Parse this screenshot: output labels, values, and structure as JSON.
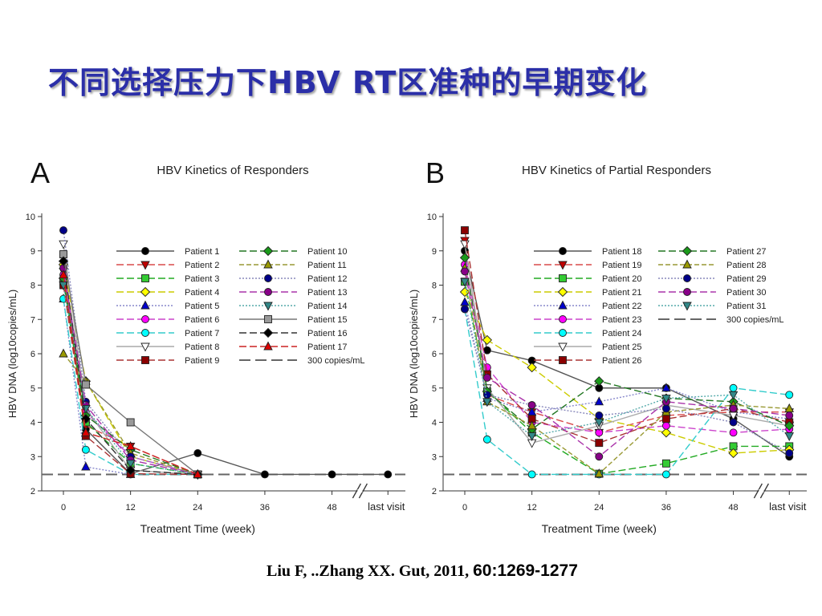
{
  "slide_title": "不同选择压力下HBV RT区准种的早期变化",
  "citation": {
    "authors": "Liu F, ..Zhang XX. Gut, 2011,",
    "pages": "60:1269-1277"
  },
  "chart_data": [
    {
      "type": "line",
      "panel": "A",
      "title": "HBV Kinetics of Responders",
      "xlabel": "Treatment Time (week)",
      "ylabel": "HBV DNA (log10copies/mL)",
      "ylim": [
        2,
        10
      ],
      "yticks": [
        2,
        3,
        4,
        5,
        6,
        7,
        8,
        9,
        10
      ],
      "xtick_labels": [
        "0",
        "12",
        "24",
        "36",
        "48",
        "last visit"
      ],
      "x_positions": [
        0,
        12,
        24,
        36,
        48,
        58
      ],
      "axis_break": "between 48 and last visit",
      "reference_line": {
        "name": "300 copies/mL",
        "y": 2.48
      },
      "legend_position": "top-right",
      "series": [
        {
          "name": "Patient 1",
          "color": "#555555",
          "marker": "circle",
          "fill": "#000000",
          "dash": "none",
          "x": [
            0,
            4,
            12,
            24,
            36,
            48,
            58
          ],
          "y": [
            8.2,
            3.8,
            2.5,
            3.1,
            2.48,
            2.48,
            2.48
          ]
        },
        {
          "name": "Patient 2",
          "color": "#d94a4a",
          "marker": "tri-down",
          "fill": "#c00000",
          "dash": "long",
          "x": [
            0,
            4,
            12,
            24
          ],
          "y": [
            8.4,
            3.9,
            3.3,
            2.48
          ]
        },
        {
          "name": "Patient 3",
          "color": "#22aa22",
          "marker": "square",
          "fill": "#33cc33",
          "dash": "long",
          "x": [
            0,
            4,
            12,
            24
          ],
          "y": [
            8.1,
            4.0,
            2.8,
            2.48
          ]
        },
        {
          "name": "Patient 4",
          "color": "#cccc00",
          "marker": "diamond",
          "fill": "#ffff00",
          "dash": "long",
          "x": [
            0,
            4,
            12,
            24
          ],
          "y": [
            8.6,
            5.2,
            3.0,
            2.48
          ]
        },
        {
          "name": "Patient 5",
          "color": "#8888cc",
          "marker": "tri-up",
          "fill": "#0000cc",
          "dash": "dot",
          "x": [
            0,
            4,
            12
          ],
          "y": [
            7.6,
            2.7,
            2.48
          ]
        },
        {
          "name": "Patient 6",
          "color": "#cc44cc",
          "marker": "circle",
          "fill": "#ff00ff",
          "dash": "long",
          "x": [
            0,
            4,
            12,
            24
          ],
          "y": [
            8.3,
            4.3,
            3.0,
            2.48
          ]
        },
        {
          "name": "Patient 7",
          "color": "#33cccc",
          "marker": "circle",
          "fill": "#00ffff",
          "dash": "long",
          "x": [
            0,
            4,
            12,
            24
          ],
          "y": [
            7.6,
            3.2,
            2.48,
            2.48
          ]
        },
        {
          "name": "Patient 8",
          "color": "#aaaaaa",
          "marker": "tri-down",
          "fill": "#ffffff",
          "dash": "none",
          "x": [
            0,
            4,
            12,
            24
          ],
          "y": [
            9.2,
            4.4,
            2.6,
            2.48
          ]
        },
        {
          "name": "Patient 9",
          "color": "#aa3333",
          "marker": "square",
          "fill": "#8b0000",
          "dash": "long",
          "x": [
            0,
            4,
            12,
            24
          ],
          "y": [
            8.0,
            3.6,
            2.5,
            2.48
          ]
        },
        {
          "name": "Patient 10",
          "color": "#227722",
          "marker": "diamond",
          "fill": "#1a9a1a",
          "dash": "long",
          "x": [
            0,
            4,
            12,
            24
          ],
          "y": [
            8.2,
            4.2,
            3.2,
            2.48
          ]
        },
        {
          "name": "Patient 11",
          "color": "#999933",
          "marker": "tri-up",
          "fill": "#999900",
          "dash": "dash",
          "x": [
            0,
            4,
            12,
            24
          ],
          "y": [
            6.0,
            5.2,
            3.1,
            2.48
          ]
        },
        {
          "name": "Patient 12",
          "color": "#8888bb",
          "marker": "circle",
          "fill": "#000088",
          "dash": "dot",
          "x": [
            0,
            4,
            12,
            24
          ],
          "y": [
            9.6,
            4.6,
            3.0,
            2.48
          ]
        },
        {
          "name": "Patient 13",
          "color": "#aa33aa",
          "marker": "circle",
          "fill": "#880088",
          "dash": "long",
          "x": [
            0,
            4,
            12,
            24
          ],
          "y": [
            8.5,
            4.5,
            2.9,
            2.48
          ]
        },
        {
          "name": "Patient 14",
          "color": "#55aaaa",
          "marker": "tri-down",
          "fill": "#338888",
          "dash": "dot",
          "x": [
            0,
            4,
            12,
            24
          ],
          "y": [
            8.0,
            4.4,
            2.8,
            2.48
          ]
        },
        {
          "name": "Patient 15",
          "color": "#777777",
          "marker": "square",
          "fill": "#999999",
          "dash": "none",
          "x": [
            0,
            4,
            12,
            24
          ],
          "y": [
            8.9,
            5.1,
            4.0,
            2.48
          ]
        },
        {
          "name": "Patient 16",
          "color": "#333333",
          "marker": "diamond",
          "fill": "#000000",
          "dash": "long",
          "x": [
            0,
            4,
            12,
            24
          ],
          "y": [
            8.7,
            4.1,
            2.6,
            2.48
          ]
        },
        {
          "name": "Patient 17",
          "color": "#cc2222",
          "marker": "tri-up",
          "fill": "#dd0000",
          "dash": "long",
          "x": [
            0,
            4,
            12,
            24
          ],
          "y": [
            8.3,
            3.7,
            3.3,
            2.48
          ]
        }
      ],
      "legend_ref_label": "300 copies/mL"
    },
    {
      "type": "line",
      "panel": "B",
      "title": "HBV Kinetics of Partial Responders",
      "xlabel": "Treatment Time (week)",
      "ylabel": "HBV DNA (log10copies/mL)",
      "ylim": [
        2,
        10
      ],
      "yticks": [
        2,
        3,
        4,
        5,
        6,
        7,
        8,
        9,
        10
      ],
      "xtick_labels": [
        "0",
        "12",
        "24",
        "36",
        "48",
        "last visit"
      ],
      "x_positions": [
        0,
        12,
        24,
        36,
        48,
        58
      ],
      "axis_break": "between 48 and last visit",
      "reference_line": {
        "name": "300 copies/mL",
        "y": 2.48
      },
      "legend_position": "top-right",
      "series": [
        {
          "name": "Patient 18",
          "color": "#555555",
          "marker": "circle",
          "fill": "#000000",
          "dash": "none",
          "x": [
            0,
            4,
            12,
            24,
            36,
            48,
            58
          ],
          "y": [
            9.0,
            6.1,
            5.8,
            5.0,
            5.0,
            4.1,
            3.0
          ]
        },
        {
          "name": "Patient 19",
          "color": "#d94a4a",
          "marker": "tri-down",
          "fill": "#c00000",
          "dash": "long",
          "x": [
            0,
            4,
            12,
            24,
            36,
            48,
            58
          ],
          "y": [
            9.3,
            4.8,
            4.3,
            3.7,
            4.2,
            4.3,
            4.3
          ]
        },
        {
          "name": "Patient 20",
          "color": "#22aa22",
          "marker": "square",
          "fill": "#33cc33",
          "dash": "long",
          "x": [
            0,
            4,
            12,
            24,
            36,
            48,
            58
          ],
          "y": [
            8.1,
            4.9,
            3.7,
            2.5,
            2.8,
            3.3,
            3.3
          ]
        },
        {
          "name": "Patient 21",
          "color": "#cccc00",
          "marker": "diamond",
          "fill": "#ffff00",
          "dash": "long",
          "x": [
            0,
            4,
            12,
            24,
            36,
            48,
            58
          ],
          "y": [
            7.8,
            6.4,
            5.6,
            4.1,
            3.7,
            3.1,
            3.2
          ]
        },
        {
          "name": "Patient 22",
          "color": "#8888cc",
          "marker": "tri-up",
          "fill": "#0000cc",
          "dash": "dot",
          "x": [
            0,
            4,
            12,
            24,
            36,
            48,
            58
          ],
          "y": [
            7.5,
            4.7,
            4.3,
            4.6,
            5.0,
            4.3,
            4.1
          ]
        },
        {
          "name": "Patient 23",
          "color": "#cc44cc",
          "marker": "circle",
          "fill": "#ff00ff",
          "dash": "long",
          "x": [
            0,
            4,
            12,
            24,
            36,
            48,
            58
          ],
          "y": [
            8.6,
            5.6,
            4.0,
            3.7,
            3.9,
            3.7,
            3.8
          ]
        },
        {
          "name": "Patient 24",
          "color": "#33cccc",
          "marker": "circle",
          "fill": "#00ffff",
          "dash": "long",
          "x": [
            0,
            4,
            12,
            24,
            36,
            48,
            58
          ],
          "y": [
            7.3,
            3.5,
            2.48,
            2.48,
            2.48,
            5.0,
            4.8
          ]
        },
        {
          "name": "Patient 25",
          "color": "#aaaaaa",
          "marker": "tri-down",
          "fill": "#ffffff",
          "dash": "none",
          "x": [
            0,
            4,
            12,
            24,
            36,
            48,
            58
          ],
          "y": [
            9.2,
            5.0,
            3.4,
            3.9,
            4.5,
            4.2,
            3.9
          ]
        },
        {
          "name": "Patient 26",
          "color": "#aa3333",
          "marker": "square",
          "fill": "#8b0000",
          "dash": "long",
          "x": [
            0,
            4,
            12,
            24,
            36,
            48,
            58
          ],
          "y": [
            9.6,
            5.4,
            4.1,
            3.4,
            4.1,
            4.4,
            4.0
          ]
        },
        {
          "name": "Patient 27",
          "color": "#227722",
          "marker": "diamond",
          "fill": "#1a9a1a",
          "dash": "long",
          "x": [
            0,
            4,
            12,
            24,
            36,
            48,
            58
          ],
          "y": [
            8.8,
            4.9,
            3.8,
            5.2,
            4.7,
            4.6,
            3.9
          ]
        },
        {
          "name": "Patient 28",
          "color": "#999933",
          "marker": "tri-up",
          "fill": "#999900",
          "dash": "dash",
          "x": [
            0,
            4,
            12,
            24,
            36,
            48,
            58
          ],
          "y": [
            8.5,
            4.6,
            3.9,
            2.5,
            4.3,
            4.5,
            4.4
          ]
        },
        {
          "name": "Patient 29",
          "color": "#8888bb",
          "marker": "circle",
          "fill": "#000088",
          "dash": "dot",
          "x": [
            0,
            4,
            12,
            24,
            36,
            48,
            58
          ],
          "y": [
            7.3,
            4.8,
            4.5,
            4.2,
            4.4,
            4.0,
            3.1
          ]
        },
        {
          "name": "Patient 30",
          "color": "#aa33aa",
          "marker": "circle",
          "fill": "#880088",
          "dash": "long",
          "x": [
            0,
            4,
            12,
            24,
            36,
            48,
            58
          ],
          "y": [
            8.4,
            5.3,
            4.5,
            3.0,
            4.6,
            4.4,
            4.2
          ]
        },
        {
          "name": "Patient 31",
          "color": "#55aaaa",
          "marker": "tri-down",
          "fill": "#338888",
          "dash": "dot",
          "x": [
            0,
            4,
            12,
            24,
            36,
            48,
            58
          ],
          "y": [
            8.1,
            4.6,
            3.6,
            4.0,
            4.7,
            4.8,
            3.6
          ]
        }
      ],
      "legend_ref_label": "300 copies/mL"
    }
  ]
}
